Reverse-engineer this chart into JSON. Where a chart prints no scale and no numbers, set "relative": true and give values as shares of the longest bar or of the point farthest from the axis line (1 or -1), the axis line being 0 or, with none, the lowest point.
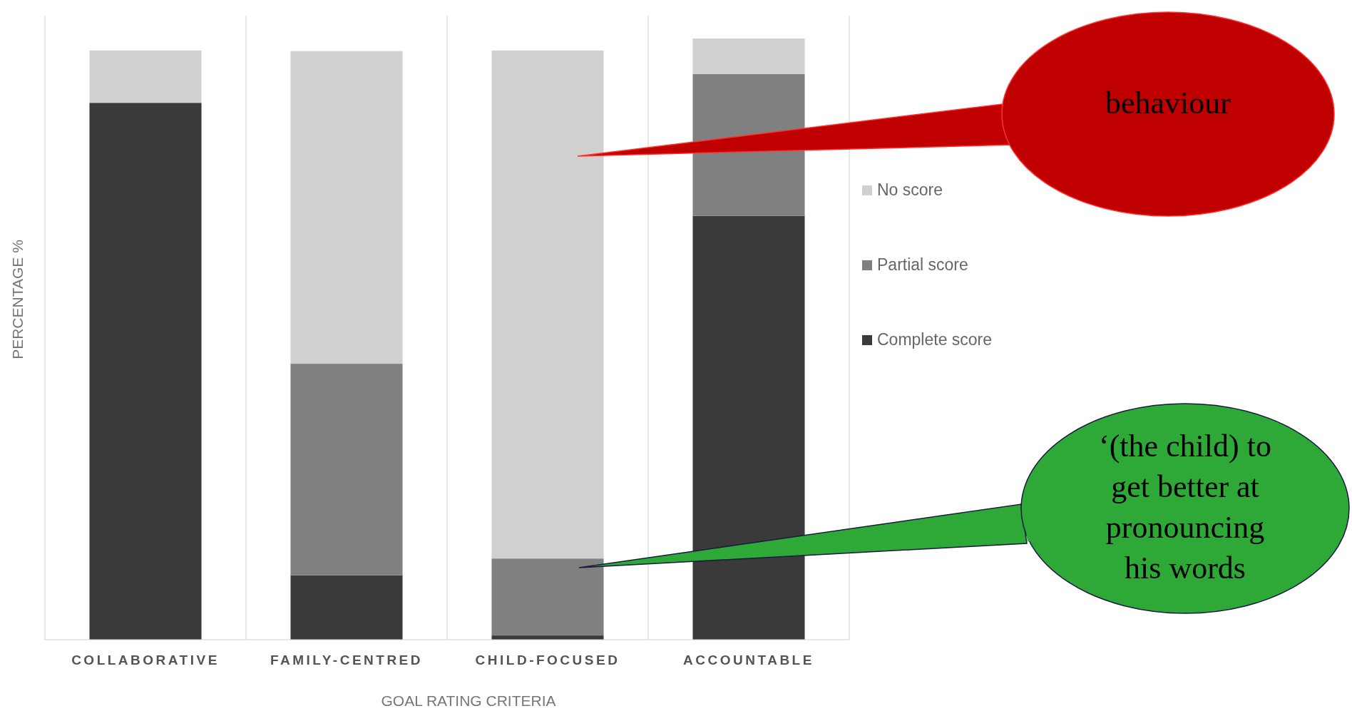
{
  "chart_data": {
    "type": "bar",
    "stacked": true,
    "relative": true,
    "xlabel": "GOAL RATING CRITERIA",
    "ylabel": "PERCENTAGE %",
    "categories": [
      "COLLABORATIVE",
      "FAMILY-CENTRED",
      "CHILD-FOCUSED",
      "ACCOUNTABLE"
    ],
    "series": [
      {
        "name": "Complete score",
        "color": "#3a3a3a",
        "values": [
          0.893,
          0.107,
          0.007,
          0.705
        ]
      },
      {
        "name": "Partial score",
        "color": "#808080",
        "values": [
          0,
          0.352,
          0.128,
          0.236
        ]
      },
      {
        "name": "No score",
        "color": "#d0d0d0",
        "values": [
          0.087,
          0.52,
          0.845,
          0.059
        ]
      }
    ],
    "legend": "right",
    "grid": "x",
    "annotations": [
      "behaviour",
      "‘(the child) to get better at pronouncing his words"
    ]
  }
}
